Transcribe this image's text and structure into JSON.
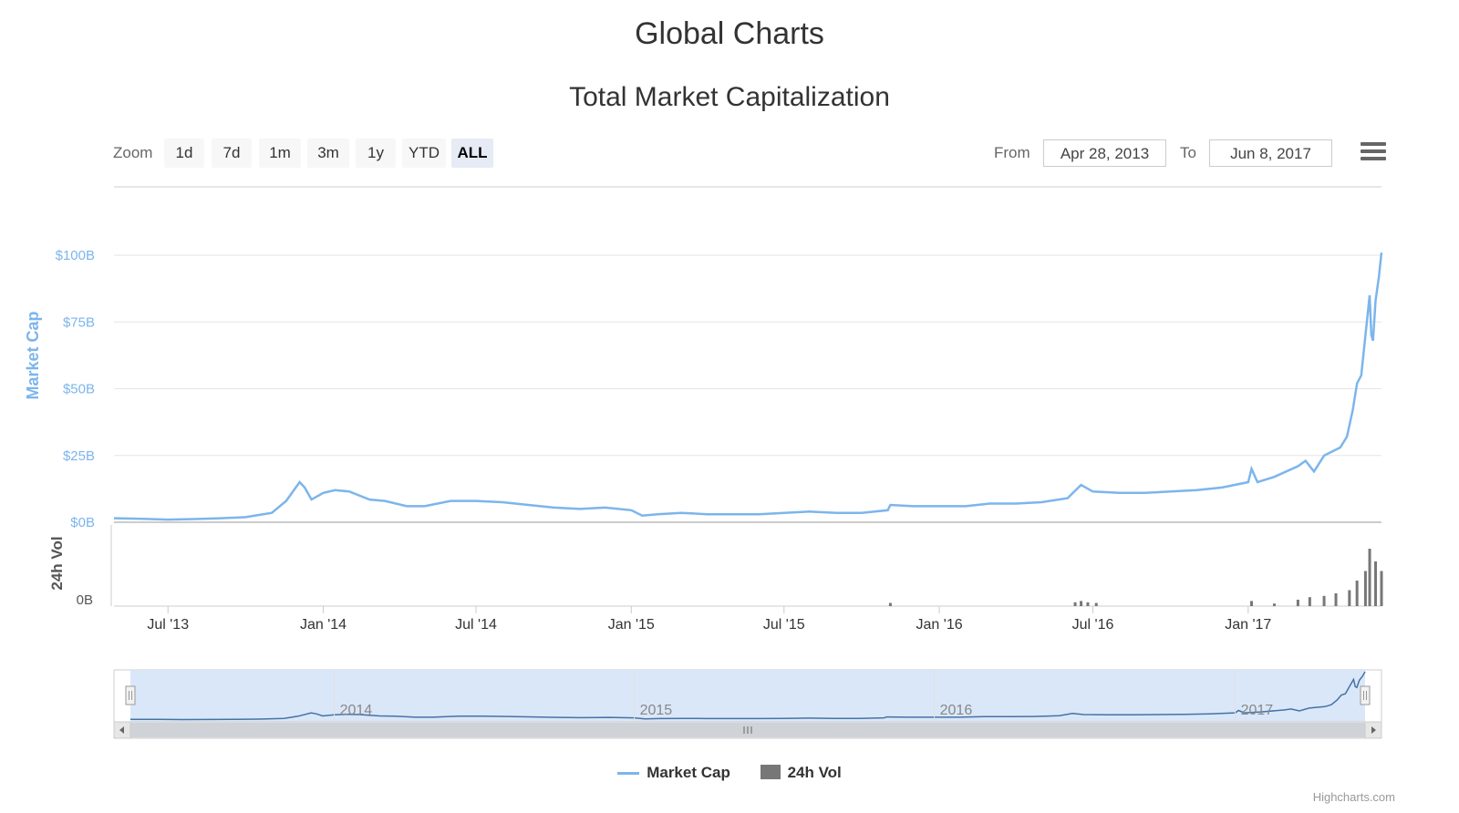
{
  "page": {
    "title": "Global Charts"
  },
  "toolbar": {
    "zoom_label": "Zoom",
    "zoom_buttons": [
      "1d",
      "7d",
      "1m",
      "3m",
      "1y",
      "YTD",
      "ALL"
    ],
    "active_zoom": "ALL",
    "from_label": "From",
    "from_value": "Apr 28, 2013",
    "to_label": "To",
    "to_value": "Jun 8, 2017",
    "menu_icon": "hamburger-menu-icon"
  },
  "colors": {
    "market_cap": "#7cb5ec",
    "volume": "#777777",
    "navigator_fill": "#d6e4f7"
  },
  "chart_data": {
    "type": "line",
    "title": "Total Market Capitalization",
    "y_axis": {
      "label": "Market Cap",
      "ticks": [
        "$0B",
        "$25B",
        "$50B",
        "$75B",
        "$100B"
      ],
      "range": [
        0,
        100
      ]
    },
    "volume_axis": {
      "label": "24h Vol",
      "ticks": [
        "0B"
      ]
    },
    "x_axis": {
      "ticks": [
        "Jul '13",
        "Jan '14",
        "Jul '14",
        "Jan '15",
        "Jul '15",
        "Jan '16",
        "Jul '16",
        "Jan '17"
      ]
    },
    "navigator_ticks": [
      "2014",
      "2015",
      "2016",
      "2017"
    ],
    "legend": [
      "Market Cap",
      "24h Vol"
    ],
    "legend_position": "bottom-center",
    "grid": true,
    "series": [
      {
        "name": "Market Cap",
        "unit": "$B",
        "points": [
          [
            "2013-04-28",
            1.5
          ],
          [
            "2013-06-01",
            1.3
          ],
          [
            "2013-07-01",
            1.0
          ],
          [
            "2013-08-01",
            1.2
          ],
          [
            "2013-09-01",
            1.5
          ],
          [
            "2013-10-01",
            1.9
          ],
          [
            "2013-11-01",
            3.5
          ],
          [
            "2013-11-18",
            8.0
          ],
          [
            "2013-12-04",
            15.0
          ],
          [
            "2013-12-10",
            13.0
          ],
          [
            "2013-12-18",
            8.5
          ],
          [
            "2014-01-01",
            11.0
          ],
          [
            "2014-01-15",
            12.0
          ],
          [
            "2014-02-01",
            11.5
          ],
          [
            "2014-02-25",
            8.5
          ],
          [
            "2014-03-15",
            8.0
          ],
          [
            "2014-04-10",
            6.0
          ],
          [
            "2014-05-01",
            6.0
          ],
          [
            "2014-06-01",
            8.0
          ],
          [
            "2014-07-01",
            8.0
          ],
          [
            "2014-08-01",
            7.5
          ],
          [
            "2014-09-01",
            6.5
          ],
          [
            "2014-10-01",
            5.5
          ],
          [
            "2014-11-01",
            5.0
          ],
          [
            "2014-12-01",
            5.5
          ],
          [
            "2015-01-01",
            4.5
          ],
          [
            "2015-01-14",
            2.5
          ],
          [
            "2015-02-01",
            3.0
          ],
          [
            "2015-03-01",
            3.5
          ],
          [
            "2015-04-01",
            3.0
          ],
          [
            "2015-05-01",
            3.0
          ],
          [
            "2015-06-01",
            3.0
          ],
          [
            "2015-07-01",
            3.5
          ],
          [
            "2015-08-01",
            4.0
          ],
          [
            "2015-09-01",
            3.5
          ],
          [
            "2015-10-01",
            3.5
          ],
          [
            "2015-11-01",
            4.5
          ],
          [
            "2015-11-04",
            6.5
          ],
          [
            "2015-12-01",
            6.0
          ],
          [
            "2016-01-01",
            6.0
          ],
          [
            "2016-02-01",
            6.0
          ],
          [
            "2016-03-01",
            7.0
          ],
          [
            "2016-04-01",
            7.0
          ],
          [
            "2016-05-01",
            7.5
          ],
          [
            "2016-06-01",
            9.0
          ],
          [
            "2016-06-17",
            14.0
          ],
          [
            "2016-07-01",
            11.5
          ],
          [
            "2016-08-01",
            11.0
          ],
          [
            "2016-09-01",
            11.0
          ],
          [
            "2016-10-01",
            11.5
          ],
          [
            "2016-11-01",
            12.0
          ],
          [
            "2016-12-01",
            13.0
          ],
          [
            "2017-01-01",
            15.0
          ],
          [
            "2017-01-05",
            20.0
          ],
          [
            "2017-01-12",
            15.0
          ],
          [
            "2017-02-01",
            17.0
          ],
          [
            "2017-03-01",
            21.0
          ],
          [
            "2017-03-10",
            23.0
          ],
          [
            "2017-03-20",
            19.0
          ],
          [
            "2017-04-01",
            25.0
          ],
          [
            "2017-04-20",
            28.0
          ],
          [
            "2017-04-28",
            32.0
          ],
          [
            "2017-05-05",
            42.0
          ],
          [
            "2017-05-10",
            52.0
          ],
          [
            "2017-05-15",
            55.0
          ],
          [
            "2017-05-20",
            70.0
          ],
          [
            "2017-05-25",
            85.0
          ],
          [
            "2017-05-27",
            70.0
          ],
          [
            "2017-05-29",
            68.0
          ],
          [
            "2017-06-01",
            83.0
          ],
          [
            "2017-06-05",
            92.0
          ],
          [
            "2017-06-08",
            101.0
          ]
        ]
      },
      {
        "name": "24h Vol",
        "unit": "relative",
        "points": [
          [
            "2015-11-04",
            0.05
          ],
          [
            "2016-06-10",
            0.06
          ],
          [
            "2016-06-17",
            0.08
          ],
          [
            "2016-06-25",
            0.06
          ],
          [
            "2016-07-05",
            0.05
          ],
          [
            "2017-01-05",
            0.08
          ],
          [
            "2017-02-01",
            0.04
          ],
          [
            "2017-03-01",
            0.1
          ],
          [
            "2017-03-15",
            0.14
          ],
          [
            "2017-04-01",
            0.16
          ],
          [
            "2017-04-15",
            0.2
          ],
          [
            "2017-05-01",
            0.25
          ],
          [
            "2017-05-10",
            0.4
          ],
          [
            "2017-05-20",
            0.55
          ],
          [
            "2017-05-25",
            0.9
          ],
          [
            "2017-06-01",
            0.7
          ],
          [
            "2017-06-08",
            0.55
          ]
        ]
      }
    ]
  },
  "credits": "Highcharts.com"
}
